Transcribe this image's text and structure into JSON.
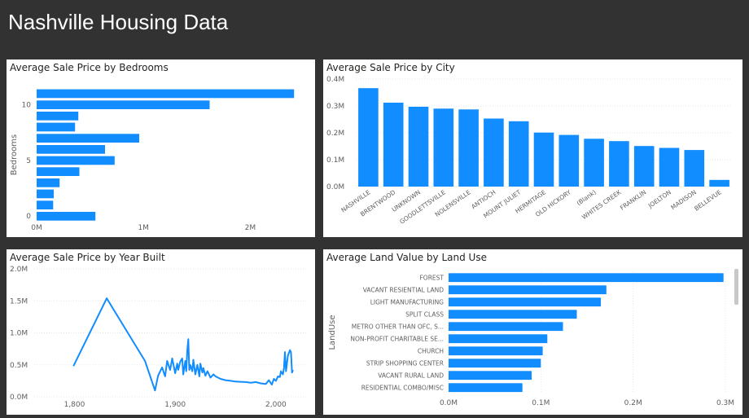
{
  "page_title": "Nashville Housing Data",
  "colors": {
    "bar": "#118dff",
    "background": "#323232",
    "card": "#ffffff",
    "grid": "#e6e6e6"
  },
  "chart_data": [
    {
      "id": "bedrooms",
      "type": "bar",
      "orientation": "horizontal",
      "title": "Average Sale Price by Bedrooms",
      "ylabel": "Bedrooms",
      "categories": [
        11,
        10,
        9,
        8,
        7,
        6,
        5,
        4,
        3,
        2,
        1,
        0
      ],
      "values": [
        2410000,
        1620000,
        390000,
        360000,
        960000,
        640000,
        730000,
        400000,
        215000,
        160000,
        155000,
        550000
      ],
      "xlim": [
        0,
        2500000
      ],
      "x_ticks": [
        0,
        1000000,
        2000000
      ],
      "x_tick_labels": [
        "0M",
        "1M",
        "2M"
      ],
      "y_tick_labels": [
        "10",
        "5",
        "0"
      ]
    },
    {
      "id": "city",
      "type": "bar",
      "title": "Average Sale Price by City",
      "categories": [
        "NASHVILLE",
        "BRENTWOOD",
        "UNKNOWN",
        "GOODLETTSVILLE",
        "NOLENSVILLE",
        "ANTIOCH",
        "MOUNT JULIET",
        "HERMITAGE",
        "OLD HICKORY",
        "(Blank)",
        "WHITES CREEK",
        "FRANKLIN",
        "JOELTON",
        "MADISON",
        "BELLEVUE"
      ],
      "values": [
        366000,
        312000,
        297000,
        290000,
        287000,
        253000,
        243000,
        201000,
        192000,
        178000,
        169000,
        151000,
        144000,
        136000,
        25000
      ],
      "ylim": [
        0,
        400000
      ],
      "y_ticks": [
        0,
        100000,
        200000,
        300000,
        400000
      ],
      "y_tick_labels": [
        "0.0M",
        "0.1M",
        "0.2M",
        "0.3M",
        "0.4M"
      ]
    },
    {
      "id": "year",
      "type": "line",
      "title": "Average Sale Price by Year Built",
      "x": [
        1799,
        1832,
        1870,
        1880,
        1883,
        1887,
        1890,
        1892,
        1895,
        1897,
        1900,
        1902,
        1903,
        1905,
        1907,
        1908,
        1910,
        1911,
        1912,
        1913,
        1914,
        1915,
        1917,
        1918,
        1920,
        1922,
        1924,
        1925,
        1927,
        1928,
        1930,
        1932,
        1935,
        1938,
        1940,
        1945,
        1950,
        1955,
        1960,
        1965,
        1970,
        1975,
        1980,
        1985,
        1990,
        1993,
        1996,
        1998,
        2000,
        2002,
        2004,
        2005,
        2007,
        2008,
        2009,
        2010,
        2012,
        2014,
        2015,
        2016,
        2017
      ],
      "y": [
        480000,
        1540000,
        560000,
        100000,
        330000,
        460000,
        320000,
        560000,
        420000,
        600000,
        370000,
        520000,
        420000,
        550000,
        600000,
        350000,
        560000,
        400000,
        720000,
        900000,
        420000,
        500000,
        400000,
        580000,
        350000,
        500000,
        320000,
        520000,
        380000,
        450000,
        330000,
        400000,
        300000,
        350000,
        320000,
        280000,
        260000,
        250000,
        240000,
        235000,
        230000,
        220000,
        230000,
        210000,
        200000,
        260000,
        190000,
        280000,
        250000,
        320000,
        310000,
        400000,
        350000,
        450000,
        700000,
        400000,
        650000,
        730000,
        700000,
        380000,
        420000
      ],
      "ylim": [
        0,
        2000000
      ],
      "xlim": [
        1760,
        2030
      ],
      "y_ticks": [
        0,
        500000,
        1000000,
        1500000,
        2000000
      ],
      "y_tick_labels": [
        "0.0M",
        "0.5M",
        "1.0M",
        "1.5M",
        "2.0M"
      ],
      "x_ticks": [
        1800,
        1900,
        2000
      ],
      "x_tick_labels": [
        "1,800",
        "1,900",
        "2,000"
      ]
    },
    {
      "id": "landuse",
      "type": "bar",
      "orientation": "horizontal",
      "title": "Average Land Value by Land Use",
      "ylabel": "LandUse",
      "categories": [
        "FOREST",
        "VACANT RESIENTIAL LAND",
        "LIGHT MANUFACTURING",
        "SPLIT CLASS",
        "METRO OTHER THAN OFC, S...",
        "NON-PROFIT CHARITABLE SE...",
        "CHURCH",
        "STRIP SHOPPING CENTER",
        "VACANT RURAL LAND",
        "RESIDENTIAL COMBO/MISC"
      ],
      "values": [
        298000,
        171000,
        165000,
        139000,
        124000,
        107000,
        102000,
        100000,
        90000,
        80000
      ],
      "xlim": [
        0,
        300000
      ],
      "x_ticks": [
        0,
        100000,
        200000,
        300000
      ],
      "x_tick_labels": [
        "0.0M",
        "0.1M",
        "0.2M",
        "0.3M"
      ]
    }
  ]
}
